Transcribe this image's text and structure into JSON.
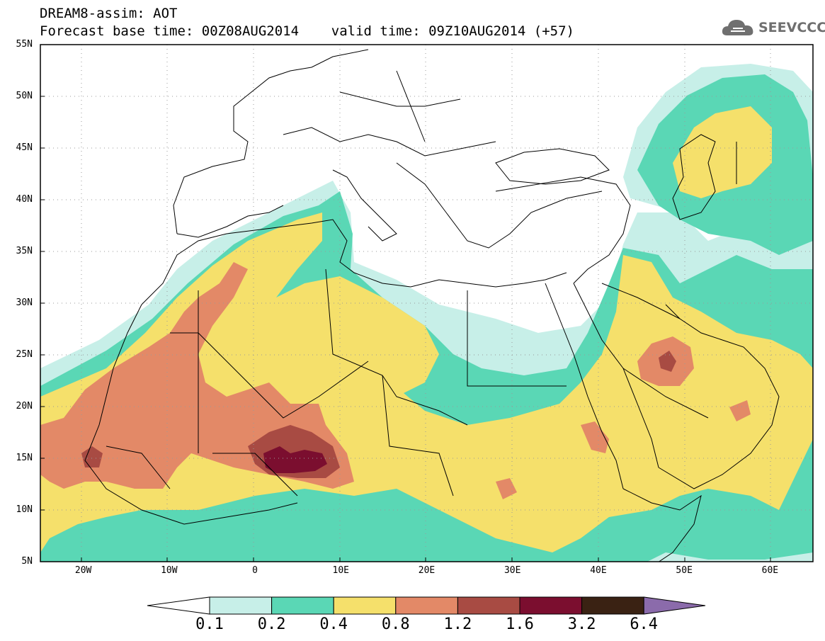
{
  "header": {
    "title_line1": "DREAM8-assim: AOT",
    "title_line2": "Forecast base time: 00Z08AUG2014    valid time: 09Z10AUG2014 (+57)"
  },
  "logo": {
    "text": "SEEVCCC",
    "icon": "cloud-logo-icon"
  },
  "map": {
    "lat_labels": [
      "55N",
      "50N",
      "45N",
      "40N",
      "35N",
      "30N",
      "25N",
      "20N",
      "15N",
      "10N",
      "5N"
    ],
    "lon_labels": [
      "20W",
      "10W",
      "0",
      "10E",
      "20E",
      "30E",
      "40E",
      "50E",
      "60E"
    ],
    "lat_range": [
      5,
      55
    ],
    "lon_range": [
      -25,
      65
    ],
    "grid": "dotted"
  },
  "legend": {
    "labels": [
      "0.1",
      "0.2",
      "0.4",
      "0.8",
      "1.2",
      "1.6",
      "3.2",
      "6.4"
    ],
    "colors": [
      "#ffffff",
      "#c7efe8",
      "#5ad7b5",
      "#f5e06b",
      "#e38967",
      "#a84b43",
      "#7b0e2f",
      "#3a2213",
      "#8b6bab"
    ]
  }
}
